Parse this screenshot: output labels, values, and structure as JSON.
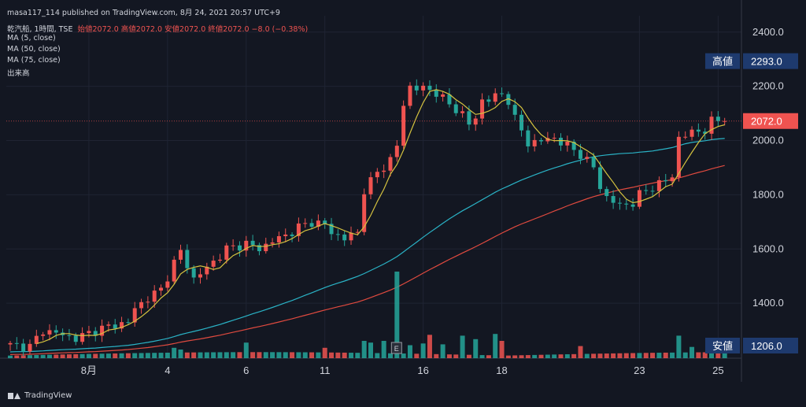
{
  "header": {
    "published": "masa117_114 published on TradingView.com, 8月 24, 2021 20:57 UTC+9",
    "symbol": "乾汽船, 1時間, TSE",
    "ohlc": "始値2072.0  高値2072.0  安値2072.0  終値2072.0  −8.0 (−0.38%)",
    "ma5": "MA (5, close)",
    "ma50": "MA (50, close)",
    "ma75": "MA (75, close)",
    "volume": "出来高"
  },
  "footer": {
    "brand": "TradingView"
  },
  "colors": {
    "background": "#131722",
    "up": "#26a69a",
    "down": "#ef5350",
    "ma5": "#d4c23f",
    "ma50": "#2ab3c6",
    "ma75": "#e04a3f",
    "label_blue": "#1e3a6e"
  },
  "chart_data": {
    "type": "candlestick",
    "ylim": [
      1206,
      2440
    ],
    "y_ticks": [
      "2400.0",
      "2200.0",
      "2000.0",
      "1800.0",
      "1600.0",
      "1400.0"
    ],
    "x_ticks": [
      "8月",
      "4",
      "6",
      "11",
      "16",
      "18",
      "23",
      "25"
    ],
    "x_tick_index": [
      12,
      24,
      36,
      48,
      63,
      75,
      96,
      108
    ],
    "n_bars": 110,
    "labels": {
      "high_name": "高値",
      "high_value": "2293.0",
      "last_value": "2072.0",
      "low_name": "安値",
      "low_value": "1206.0"
    },
    "event_marker": "E",
    "event_index": 59,
    "grid": true,
    "key_closes": [
      {
        "i": 0,
        "c": 1245
      },
      {
        "i": 3,
        "c": 1240
      },
      {
        "i": 5,
        "c": 1300
      },
      {
        "i": 7,
        "c": 1290
      },
      {
        "i": 10,
        "c": 1270
      },
      {
        "i": 13,
        "c": 1300
      },
      {
        "i": 16,
        "c": 1320
      },
      {
        "i": 18,
        "c": 1330
      },
      {
        "i": 19,
        "c": 1380
      },
      {
        "i": 21,
        "c": 1420
      },
      {
        "i": 23,
        "c": 1450
      },
      {
        "i": 25,
        "c": 1550
      },
      {
        "i": 26,
        "c": 1590
      },
      {
        "i": 28,
        "c": 1490
      },
      {
        "i": 30,
        "c": 1530
      },
      {
        "i": 33,
        "c": 1600
      },
      {
        "i": 36,
        "c": 1620
      },
      {
        "i": 38,
        "c": 1600
      },
      {
        "i": 40,
        "c": 1630
      },
      {
        "i": 42,
        "c": 1650
      },
      {
        "i": 44,
        "c": 1680
      },
      {
        "i": 46,
        "c": 1700
      },
      {
        "i": 48,
        "c": 1690
      },
      {
        "i": 49,
        "c": 1660
      },
      {
        "i": 51,
        "c": 1640
      },
      {
        "i": 53,
        "c": 1660
      },
      {
        "i": 54,
        "c": 1820
      },
      {
        "i": 56,
        "c": 1880
      },
      {
        "i": 58,
        "c": 1930
      },
      {
        "i": 59,
        "c": 1980
      },
      {
        "i": 60,
        "c": 2130
      },
      {
        "i": 61,
        "c": 2200
      },
      {
        "i": 63,
        "c": 2190
      },
      {
        "i": 65,
        "c": 2180
      },
      {
        "i": 67,
        "c": 2130
      },
      {
        "i": 69,
        "c": 2100
      },
      {
        "i": 70,
        "c": 2060
      },
      {
        "i": 71,
        "c": 2080
      },
      {
        "i": 72,
        "c": 2150
      },
      {
        "i": 74,
        "c": 2160
      },
      {
        "i": 75,
        "c": 2170
      },
      {
        "i": 76,
        "c": 2150
      },
      {
        "i": 77,
        "c": 2080
      },
      {
        "i": 79,
        "c": 1990
      },
      {
        "i": 81,
        "c": 2000
      },
      {
        "i": 83,
        "c": 2010
      },
      {
        "i": 85,
        "c": 1980
      },
      {
        "i": 87,
        "c": 1950
      },
      {
        "i": 89,
        "c": 1900
      },
      {
        "i": 90,
        "c": 1830
      },
      {
        "i": 91,
        "c": 1790
      },
      {
        "i": 93,
        "c": 1760
      },
      {
        "i": 95,
        "c": 1770
      },
      {
        "i": 96,
        "c": 1800
      },
      {
        "i": 98,
        "c": 1830
      },
      {
        "i": 100,
        "c": 1850
      },
      {
        "i": 101,
        "c": 1870
      },
      {
        "i": 102,
        "c": 2010
      },
      {
        "i": 104,
        "c": 2030
      },
      {
        "i": 106,
        "c": 2040
      },
      {
        "i": 107,
        "c": 2070
      },
      {
        "i": 108,
        "c": 2072
      }
    ],
    "volume_spikes": [
      {
        "i": 59,
        "v": 1.0
      },
      {
        "i": 64,
        "v": 0.27
      },
      {
        "i": 69,
        "v": 0.26
      },
      {
        "i": 74,
        "v": 0.28
      },
      {
        "i": 71,
        "v": 0.22
      },
      {
        "i": 54,
        "v": 0.2
      },
      {
        "i": 55,
        "v": 0.18
      },
      {
        "i": 57,
        "v": 0.2
      },
      {
        "i": 36,
        "v": 0.18
      },
      {
        "i": 48,
        "v": 0.12
      },
      {
        "i": 61,
        "v": 0.15
      },
      {
        "i": 63,
        "v": 0.17
      },
      {
        "i": 66,
        "v": 0.16
      },
      {
        "i": 75,
        "v": 0.2
      },
      {
        "i": 87,
        "v": 0.14
      },
      {
        "i": 102,
        "v": 0.26
      },
      {
        "i": 104,
        "v": 0.13
      },
      {
        "i": 25,
        "v": 0.12
      },
      {
        "i": 26,
        "v": 0.1
      }
    ]
  }
}
